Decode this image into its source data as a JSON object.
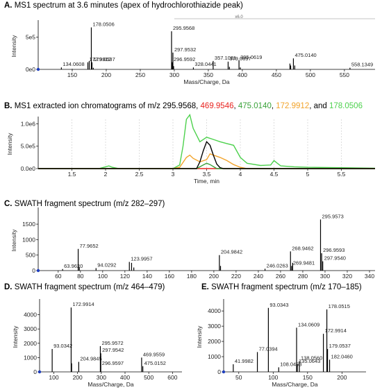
{
  "titles": {
    "A": {
      "letter": "A.",
      "text": " MS1 spectrum at 3.6 minutes (apex of hydrochlorothiazide peak)"
    },
    "B": {
      "letter": "B.",
      "prefix": " MS1 extracted ion chromatograms of m/z 295.9568, ",
      "v1": "469.9546",
      "sep1": ", ",
      "v2": "475.0140",
      "sep2": ", ",
      "v3": "172.9912",
      "sep3": ", and ",
      "v4": "178.0506"
    },
    "C": {
      "letter": "C.",
      "text": " SWATH fragment spectrum (m/z 282–297)"
    },
    "D": {
      "letter": "D.",
      "text": " SWATH fragment spectrum (m/z 464–479)"
    },
    "E": {
      "letter": "E.",
      "text": " SWATH fragment spectrum (m/z 170–185)"
    }
  },
  "colors": {
    "black": "#000000",
    "red": "#e8231f",
    "green": "#3aa23a",
    "orange": "#f2a32a",
    "lightgreen": "#4cd14c"
  },
  "chart_data": [
    {
      "id": "A",
      "type": "bar",
      "xlabel": "Mass/Charge, Da",
      "ylabel": "Intensity",
      "xlim": [
        100,
        595
      ],
      "ylim": [
        0,
        720000
      ],
      "xticks": [
        150,
        200,
        250,
        300,
        350,
        400,
        450,
        500,
        550
      ],
      "yticks": [
        {
          "v": 0,
          "label": "0e0"
        },
        {
          "v": 500000,
          "label": "5e5"
        }
      ],
      "peaks": [
        {
          "x": 134.0608,
          "y": 30000,
          "label": "134.0608"
        },
        {
          "x": 150.0,
          "y": 8000
        },
        {
          "x": 172.9912,
          "y": 110000,
          "label": "172.9912"
        },
        {
          "x": 175.0,
          "y": 130000
        },
        {
          "x": 178.0506,
          "y": 650000,
          "label": "178.0506"
        },
        {
          "x": 179.0537,
          "y": 110000,
          "label": "179.0537"
        },
        {
          "x": 181.0,
          "y": 25000
        },
        {
          "x": 200.0,
          "y": 6000
        },
        {
          "x": 250.0,
          "y": 5000
        },
        {
          "x": 296.9592,
          "y": 110000,
          "label": "296.9592"
        },
        {
          "x": 295.9568,
          "y": 590000,
          "label": "295.9568"
        },
        {
          "x": 297.9532,
          "y": 260000,
          "label": "297.9532"
        },
        {
          "x": 299.0,
          "y": 50000
        },
        {
          "x": 328.0441,
          "y": 30000,
          "label": "328.0441"
        },
        {
          "x": 357.1081,
          "y": 130000,
          "label": "357.1081"
        },
        {
          "x": 379.0897,
          "y": 120000,
          "label": "379.0897"
        },
        {
          "x": 381.0,
          "y": 40000
        },
        {
          "x": 395.0619,
          "y": 140000,
          "label": "395.0619"
        },
        {
          "x": 397.0,
          "y": 30000
        },
        {
          "x": 469.95,
          "y": 90000
        },
        {
          "x": 471.0,
          "y": 60000
        },
        {
          "x": 475.014,
          "y": 170000,
          "label": "475.0140"
        },
        {
          "x": 477.0,
          "y": 60000
        },
        {
          "x": 558.1349,
          "y": 25000,
          "label": "558.1349"
        }
      ],
      "topbar": "x6.0"
    },
    {
      "id": "B",
      "type": "line",
      "xlabel": "Time, min",
      "ylabel": "Intensity",
      "xlim": [
        1.0,
        6.0
      ],
      "ylim": [
        0,
        1100000
      ],
      "xticks": [
        1.5,
        2.0,
        2.5,
        3.0,
        3.5,
        4.0,
        4.5,
        5.0,
        5.5
      ],
      "yticks": [
        {
          "v": 0,
          "label": "0.0e0"
        },
        {
          "v": 500000,
          "label": "5.0e5"
        },
        {
          "v": 1000000,
          "label": "1.0e6"
        }
      ],
      "series": [
        {
          "color": "#4cd14c",
          "points": [
            [
              1.0,
              0
            ],
            [
              1.9,
              0
            ],
            [
              2.0,
              40000
            ],
            [
              2.05,
              60000
            ],
            [
              2.1,
              30000
            ],
            [
              2.2,
              0
            ],
            [
              3.0,
              0
            ],
            [
              3.1,
              80000
            ],
            [
              3.15,
              500000
            ],
            [
              3.2,
              1100000
            ],
            [
              3.25,
              1200000
            ],
            [
              3.3,
              900000
            ],
            [
              3.4,
              600000
            ],
            [
              3.5,
              700000
            ],
            [
              3.6,
              650000
            ],
            [
              3.7,
              600000
            ],
            [
              3.8,
              560000
            ],
            [
              3.9,
              520000
            ],
            [
              4.0,
              250000
            ],
            [
              4.1,
              120000
            ],
            [
              4.3,
              70000
            ],
            [
              4.45,
              80000
            ],
            [
              4.5,
              180000
            ],
            [
              4.55,
              120000
            ],
            [
              4.6,
              60000
            ],
            [
              4.8,
              40000
            ],
            [
              5.0,
              30000
            ],
            [
              5.5,
              20000
            ],
            [
              6.0,
              10000
            ]
          ]
        },
        {
          "color": "#f2a32a",
          "points": [
            [
              1.0,
              0
            ],
            [
              3.0,
              0
            ],
            [
              3.1,
              30000
            ],
            [
              3.2,
              250000
            ],
            [
              3.25,
              300000
            ],
            [
              3.3,
              230000
            ],
            [
              3.4,
              150000
            ],
            [
              3.5,
              200000
            ],
            [
              3.55,
              330000
            ],
            [
              3.6,
              300000
            ],
            [
              3.7,
              250000
            ],
            [
              3.8,
              180000
            ],
            [
              3.9,
              90000
            ],
            [
              4.0,
              30000
            ],
            [
              4.1,
              0
            ],
            [
              6.0,
              0
            ]
          ]
        },
        {
          "color": "#e8231f",
          "points": [
            [
              1.0,
              0
            ],
            [
              6.0,
              0
            ]
          ]
        },
        {
          "color": "#3aa23a",
          "points": [
            [
              1.0,
              0
            ],
            [
              3.35,
              0
            ],
            [
              3.45,
              80000
            ],
            [
              3.5,
              120000
            ],
            [
              3.55,
              90000
            ],
            [
              3.65,
              0
            ],
            [
              6.0,
              0
            ]
          ]
        },
        {
          "color": "#000000",
          "points": [
            [
              1.0,
              0
            ],
            [
              3.35,
              0
            ],
            [
              3.4,
              150000
            ],
            [
              3.45,
              400000
            ],
            [
              3.5,
              600000
            ],
            [
              3.55,
              520000
            ],
            [
              3.6,
              300000
            ],
            [
              3.65,
              100000
            ],
            [
              3.7,
              20000
            ],
            [
              3.75,
              0
            ],
            [
              6.0,
              0
            ]
          ]
        }
      ]
    },
    {
      "id": "C",
      "type": "bar",
      "xlabel": "",
      "ylabel": "Intensity",
      "xlim": [
        42,
        345
      ],
      "ylim": [
        0,
        1950
      ],
      "xticks": [
        60,
        80,
        100,
        120,
        140,
        160,
        180,
        200,
        220,
        240,
        260,
        280,
        300,
        320,
        340
      ],
      "yticks": [
        {
          "v": 0,
          "label": "0"
        },
        {
          "v": 500,
          "label": "500"
        },
        {
          "v": 1000,
          "label": "1000"
        },
        {
          "v": 1500,
          "label": "1500"
        }
      ],
      "peaks": [
        {
          "x": 63.962,
          "y": 50,
          "label": "63.9620"
        },
        {
          "x": 77.9652,
          "y": 700,
          "label": "77.9652"
        },
        {
          "x": 79.0,
          "y": 120
        },
        {
          "x": 94.0292,
          "y": 80,
          "label": "94.0292"
        },
        {
          "x": 123.9957,
          "y": 280,
          "label": "123.9957"
        },
        {
          "x": 126.0,
          "y": 250
        },
        {
          "x": 128.0,
          "y": 100
        },
        {
          "x": 204.9842,
          "y": 500,
          "label": "204.9842"
        },
        {
          "x": 206.0,
          "y": 150
        },
        {
          "x": 246.0263,
          "y": 60,
          "label": "246.0263"
        },
        {
          "x": 268.9462,
          "y": 620,
          "label": "268.9462"
        },
        {
          "x": 269.9481,
          "y": 150,
          "label": "269.9481"
        },
        {
          "x": 270.9,
          "y": 250
        },
        {
          "x": 295.9573,
          "y": 1650,
          "label": "295.9573"
        },
        {
          "x": 296.9593,
          "y": 560,
          "label": "296.9593"
        },
        {
          "x": 297.954,
          "y": 300,
          "label": "297.9540"
        }
      ]
    },
    {
      "id": "D",
      "type": "bar",
      "xlabel": "Mass/Charge, Da",
      "ylabel": "Intensity",
      "xlim": [
        40,
        640
      ],
      "ylim": [
        0,
        4900
      ],
      "xticks": [
        100,
        200,
        300,
        400,
        500,
        600
      ],
      "yticks": [
        {
          "v": 0,
          "label": "0"
        },
        {
          "v": 1000,
          "label": "1000"
        },
        {
          "v": 2000,
          "label": "2000"
        },
        {
          "v": 3000,
          "label": "3000"
        },
        {
          "v": 4000,
          "label": "4000"
        }
      ],
      "peaks": [
        {
          "x": 93.0342,
          "y": 1600,
          "label": "93.0342"
        },
        {
          "x": 172.9914,
          "y": 4500,
          "label": "172.9914"
        },
        {
          "x": 175.0,
          "y": 600
        },
        {
          "x": 204.9845,
          "y": 700,
          "label": "204.9845"
        },
        {
          "x": 295.9572,
          "y": 1800,
          "label": "295.9572"
        },
        {
          "x": 297.9542,
          "y": 1300,
          "label": "297.9542"
        },
        {
          "x": 296.9597,
          "y": 400,
          "label": "296.9597"
        },
        {
          "x": 469.9559,
          "y": 1000,
          "label": "469.9559"
        },
        {
          "x": 475.0152,
          "y": 400,
          "label": "475.0152"
        }
      ]
    },
    {
      "id": "E",
      "type": "bar",
      "xlabel": "Mass/Charge, Da",
      "ylabel": "Intensity",
      "xlim": [
        28,
        235
      ],
      "ylim": [
        0,
        4600
      ],
      "xticks": [
        50,
        100,
        150,
        200
      ],
      "yticks": [
        {
          "v": 0,
          "label": "0"
        },
        {
          "v": 1000,
          "label": "1000"
        },
        {
          "v": 2000,
          "label": "2000"
        },
        {
          "v": 3000,
          "label": "3000"
        },
        {
          "v": 4000,
          "label": "4000"
        }
      ],
      "peaks": [
        {
          "x": 41.9982,
          "y": 500,
          "label": "41.9982"
        },
        {
          "x": 77.0394,
          "y": 1300,
          "label": "77.0394"
        },
        {
          "x": 93.0343,
          "y": 4200,
          "label": "93.0343"
        },
        {
          "x": 108.0453,
          "y": 300,
          "label": "108.0453"
        },
        {
          "x": 134.0609,
          "y": 2900,
          "label": "134.0609"
        },
        {
          "x": 138.056,
          "y": 700,
          "label": "138.0560"
        },
        {
          "x": 135.0643,
          "y": 500,
          "label": "135.0643"
        },
        {
          "x": 172.9914,
          "y": 2500,
          "label": "172.9914"
        },
        {
          "x": 178.0515,
          "y": 4100,
          "label": "178.0515"
        },
        {
          "x": 179.0537,
          "y": 1500,
          "label": "179.0537"
        },
        {
          "x": 182.046,
          "y": 800,
          "label": "182.0460"
        }
      ]
    }
  ]
}
